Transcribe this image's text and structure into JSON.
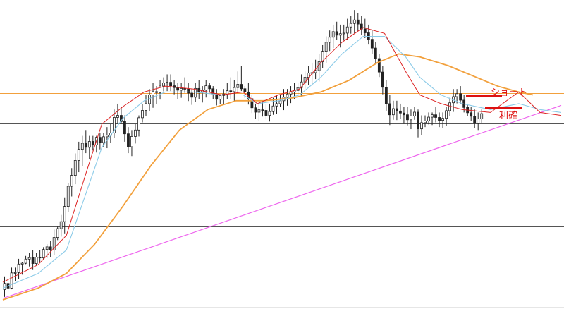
{
  "chart_data": {
    "type": "candlestick",
    "title": "",
    "xlabel": "",
    "ylabel": "",
    "grid": false,
    "y_range": [
      0,
      100
    ],
    "x_range": [
      0,
      158
    ],
    "horizontal_levels": [
      {
        "y": 81.0,
        "style": "support-resistance",
        "color": "#555555"
      },
      {
        "y": 70.5,
        "style": "current-price",
        "color": "#f2a03c"
      },
      {
        "y": 60.3,
        "style": "support-resistance",
        "color": "#555555"
      },
      {
        "y": 46.6,
        "style": "support-resistance",
        "color": "#555555"
      },
      {
        "y": 25.1,
        "style": "support-resistance",
        "color": "#555555"
      },
      {
        "y": 21.1,
        "style": "support-resistance",
        "color": "#555555"
      },
      {
        "y": 11.4,
        "style": "support-resistance",
        "color": "#555555"
      }
    ],
    "trendline": {
      "color": "#ee66ee",
      "from": [
        0,
        0.5
      ],
      "to": [
        158,
        66.4
      ]
    },
    "ma_short": {
      "color": "#dd2222",
      "points": [
        [
          0,
          6
        ],
        [
          10,
          12
        ],
        [
          18,
          22
        ],
        [
          24,
          45
        ],
        [
          28,
          60
        ],
        [
          34,
          66
        ],
        [
          40,
          71
        ],
        [
          46,
          73
        ],
        [
          54,
          72
        ],
        [
          62,
          70
        ],
        [
          68,
          71
        ],
        [
          72,
          67
        ],
        [
          78,
          70
        ],
        [
          84,
          72
        ],
        [
          90,
          81
        ],
        [
          96,
          88
        ],
        [
          102,
          93
        ],
        [
          108,
          91
        ],
        [
          114,
          78
        ],
        [
          118,
          70
        ],
        [
          124,
          67
        ],
        [
          130,
          65
        ],
        [
          138,
          64
        ],
        [
          146,
          71
        ],
        [
          152,
          64
        ],
        [
          158,
          63
        ]
      ]
    },
    "ma_mid": {
      "color": "#8ccbe8",
      "points": [
        [
          0,
          4
        ],
        [
          10,
          9
        ],
        [
          18,
          17
        ],
        [
          24,
          38
        ],
        [
          28,
          52
        ],
        [
          34,
          62
        ],
        [
          40,
          68
        ],
        [
          46,
          71
        ],
        [
          54,
          71
        ],
        [
          62,
          70
        ],
        [
          68,
          70
        ],
        [
          72,
          67
        ],
        [
          78,
          68
        ],
        [
          84,
          70
        ],
        [
          90,
          76
        ],
        [
          96,
          84
        ],
        [
          102,
          90
        ],
        [
          108,
          90
        ],
        [
          114,
          83
        ],
        [
          118,
          76
        ],
        [
          124,
          70
        ],
        [
          130,
          67
        ],
        [
          138,
          65
        ],
        [
          146,
          67
        ],
        [
          152,
          65
        ],
        [
          158,
          64
        ]
      ]
    },
    "ma_long": {
      "color": "#f2a03c",
      "points": [
        [
          0,
          0
        ],
        [
          10,
          4
        ],
        [
          18,
          9
        ],
        [
          26,
          19
        ],
        [
          34,
          32
        ],
        [
          42,
          46
        ],
        [
          50,
          58
        ],
        [
          58,
          65
        ],
        [
          66,
          68
        ],
        [
          74,
          68
        ],
        [
          82,
          69
        ],
        [
          90,
          71
        ],
        [
          98,
          75
        ],
        [
          106,
          81
        ],
        [
          112,
          84
        ],
        [
          118,
          83
        ],
        [
          126,
          80
        ],
        [
          134,
          76
        ],
        [
          140,
          73
        ],
        [
          146,
          71
        ],
        [
          150,
          70
        ]
      ]
    },
    "candles": [
      {
        "o": 3.5,
        "h": 8,
        "l": 1.0,
        "c": 5.6
      },
      {
        "o": 5.6,
        "h": 7,
        "l": 2.7,
        "c": 4.0
      },
      {
        "o": 4.0,
        "h": 11,
        "l": 3.6,
        "c": 9.2
      },
      {
        "o": 9.2,
        "h": 11,
        "l": 6.5,
        "c": 9.3
      },
      {
        "o": 9.3,
        "h": 14,
        "l": 7.0,
        "c": 12.2
      },
      {
        "o": 12.2,
        "h": 13,
        "l": 8.6,
        "c": 12.5
      },
      {
        "o": 12.5,
        "h": 15,
        "l": 12.2,
        "c": 13.9
      },
      {
        "o": 13.9,
        "h": 16,
        "l": 11.4,
        "c": 14.4
      },
      {
        "o": 14.4,
        "h": 17,
        "l": 10.2,
        "c": 12.4
      },
      {
        "o": 12.4,
        "h": 16,
        "l": 11.8,
        "c": 14.6
      },
      {
        "o": 14.6,
        "h": 17,
        "l": 12.6,
        "c": 14.3
      },
      {
        "o": 14.3,
        "h": 18,
        "l": 13.7,
        "c": 17.2
      },
      {
        "o": 17.2,
        "h": 19,
        "l": 14.3,
        "c": 18.1
      },
      {
        "o": 18.1,
        "h": 20,
        "l": 14.6,
        "c": 17.0
      },
      {
        "o": 17.0,
        "h": 24,
        "l": 15.2,
        "c": 21.3
      },
      {
        "o": 21.3,
        "h": 25,
        "l": 20.4,
        "c": 24.3
      },
      {
        "o": 24.3,
        "h": 29,
        "l": 21.6,
        "c": 26.7
      },
      {
        "o": 26.7,
        "h": 35,
        "l": 22.7,
        "c": 31.9
      },
      {
        "o": 31.9,
        "h": 40,
        "l": 29.9,
        "c": 38.8
      },
      {
        "o": 38.8,
        "h": 45,
        "l": 35.3,
        "c": 42.5
      },
      {
        "o": 42.5,
        "h": 50,
        "l": 39.5,
        "c": 47.6
      },
      {
        "o": 47.6,
        "h": 54,
        "l": 43.6,
        "c": 51.4
      },
      {
        "o": 51.4,
        "h": 56,
        "l": 45.7,
        "c": 53.5
      },
      {
        "o": 53.5,
        "h": 58,
        "l": 50.1,
        "c": 52.1
      },
      {
        "o": 52.1,
        "h": 56,
        "l": 48.1,
        "c": 54.1
      },
      {
        "o": 54.1,
        "h": 56,
        "l": 51.0,
        "c": 52.9
      },
      {
        "o": 52.9,
        "h": 56,
        "l": 50.3,
        "c": 55.5
      },
      {
        "o": 55.5,
        "h": 57,
        "l": 51.4,
        "c": 53.7
      },
      {
        "o": 53.7,
        "h": 57,
        "l": 52.1,
        "c": 55.7
      },
      {
        "o": 55.7,
        "h": 59,
        "l": 51.8,
        "c": 56.2
      },
      {
        "o": 56.2,
        "h": 60,
        "l": 53.7,
        "c": 57.0
      },
      {
        "o": 57.0,
        "h": 65,
        "l": 55.3,
        "c": 62.3
      },
      {
        "o": 62.3,
        "h": 67,
        "l": 60.1,
        "c": 63.0
      },
      {
        "o": 63.0,
        "h": 66,
        "l": 60.1,
        "c": 60.9
      },
      {
        "o": 60.9,
        "h": 63,
        "l": 54.0,
        "c": 56.7
      },
      {
        "o": 56.7,
        "h": 59,
        "l": 50.1,
        "c": 52.3
      },
      {
        "o": 52.3,
        "h": 58,
        "l": 49.1,
        "c": 55.8
      },
      {
        "o": 55.8,
        "h": 60,
        "l": 53.4,
        "c": 58.0
      },
      {
        "o": 58.0,
        "h": 63,
        "l": 55.8,
        "c": 62.2
      },
      {
        "o": 62.2,
        "h": 67,
        "l": 60.6,
        "c": 64.7
      },
      {
        "o": 64.7,
        "h": 70,
        "l": 62.9,
        "c": 67.0
      },
      {
        "o": 67.0,
        "h": 72,
        "l": 64.4,
        "c": 70.0
      },
      {
        "o": 70.0,
        "h": 74,
        "l": 65.6,
        "c": 71.1
      },
      {
        "o": 71.1,
        "h": 73,
        "l": 66.8,
        "c": 70.8
      },
      {
        "o": 70.8,
        "h": 75,
        "l": 68.4,
        "c": 73.0
      },
      {
        "o": 73.0,
        "h": 76,
        "l": 71.2,
        "c": 74.1
      },
      {
        "o": 74.1,
        "h": 77,
        "l": 71.3,
        "c": 74.3
      },
      {
        "o": 74.3,
        "h": 77,
        "l": 71.3,
        "c": 73.1
      },
      {
        "o": 73.1,
        "h": 75,
        "l": 70.2,
        "c": 72.5
      },
      {
        "o": 72.5,
        "h": 74,
        "l": 68.6,
        "c": 71.6
      },
      {
        "o": 71.6,
        "h": 74,
        "l": 69.0,
        "c": 72.2
      },
      {
        "o": 72.2,
        "h": 76,
        "l": 70.7,
        "c": 72.0
      },
      {
        "o": 72.0,
        "h": 74,
        "l": 67.9,
        "c": 70.6
      },
      {
        "o": 70.6,
        "h": 72,
        "l": 66.6,
        "c": 69.2
      },
      {
        "o": 69.2,
        "h": 74,
        "l": 67.7,
        "c": 72.2
      },
      {
        "o": 72.2,
        "h": 75,
        "l": 68.5,
        "c": 71.0
      },
      {
        "o": 71.0,
        "h": 73,
        "l": 67.4,
        "c": 71.6
      },
      {
        "o": 71.6,
        "h": 75,
        "l": 69.1,
        "c": 73.1
      },
      {
        "o": 73.1,
        "h": 74,
        "l": 70.9,
        "c": 72.1
      },
      {
        "o": 72.1,
        "h": 73,
        "l": 68.6,
        "c": 70.3
      },
      {
        "o": 70.3,
        "h": 72,
        "l": 66.4,
        "c": 68.5
      },
      {
        "o": 68.5,
        "h": 70,
        "l": 66.9,
        "c": 69.8
      },
      {
        "o": 69.8,
        "h": 72,
        "l": 66.6,
        "c": 70.3
      },
      {
        "o": 70.3,
        "h": 74,
        "l": 68.5,
        "c": 71.4
      },
      {
        "o": 71.4,
        "h": 76,
        "l": 68.7,
        "c": 71.1
      },
      {
        "o": 71.1,
        "h": 75,
        "l": 68.0,
        "c": 72.5
      },
      {
        "o": 72.5,
        "h": 78,
        "l": 71.0,
        "c": 73.6
      },
      {
        "o": 73.6,
        "h": 80,
        "l": 71.3,
        "c": 72.1
      },
      {
        "o": 72.1,
        "h": 73,
        "l": 69.0,
        "c": 71.0
      },
      {
        "o": 71.0,
        "h": 74,
        "l": 66.7,
        "c": 68.7
      },
      {
        "o": 68.7,
        "h": 70,
        "l": 63.8,
        "c": 65.6
      },
      {
        "o": 65.6,
        "h": 67,
        "l": 61.7,
        "c": 64.1
      },
      {
        "o": 64.1,
        "h": 67,
        "l": 61.2,
        "c": 64.9
      },
      {
        "o": 64.9,
        "h": 68,
        "l": 62.6,
        "c": 64.7
      },
      {
        "o": 64.7,
        "h": 67,
        "l": 61.6,
        "c": 63.0
      },
      {
        "o": 63.0,
        "h": 67,
        "l": 60.9,
        "c": 64.3
      },
      {
        "o": 64.3,
        "h": 69,
        "l": 63.2,
        "c": 66.2
      },
      {
        "o": 66.2,
        "h": 70,
        "l": 63.6,
        "c": 67.0
      },
      {
        "o": 67.0,
        "h": 70,
        "l": 65.9,
        "c": 68.0
      },
      {
        "o": 68.0,
        "h": 72,
        "l": 64.8,
        "c": 69.2
      },
      {
        "o": 69.2,
        "h": 72,
        "l": 66.3,
        "c": 70.3
      },
      {
        "o": 70.3,
        "h": 73,
        "l": 67.2,
        "c": 71.0
      },
      {
        "o": 71.0,
        "h": 74,
        "l": 68.6,
        "c": 71.5
      },
      {
        "o": 71.5,
        "h": 74,
        "l": 69.6,
        "c": 72.5
      },
      {
        "o": 72.5,
        "h": 77,
        "l": 69.2,
        "c": 74.4
      },
      {
        "o": 74.4,
        "h": 78,
        "l": 72.1,
        "c": 76.0
      },
      {
        "o": 76.0,
        "h": 80,
        "l": 73.4,
        "c": 77.5
      },
      {
        "o": 77.5,
        "h": 81,
        "l": 73.7,
        "c": 77.6
      },
      {
        "o": 77.6,
        "h": 82,
        "l": 75.4,
        "c": 78.3
      },
      {
        "o": 78.3,
        "h": 84,
        "l": 74.6,
        "c": 81.3
      },
      {
        "o": 81.3,
        "h": 87,
        "l": 79.2,
        "c": 84.9
      },
      {
        "o": 84.9,
        "h": 90,
        "l": 81.0,
        "c": 88.0
      },
      {
        "o": 88.0,
        "h": 92,
        "l": 85.0,
        "c": 89.7
      },
      {
        "o": 89.7,
        "h": 94,
        "l": 86.0,
        "c": 91.6
      },
      {
        "o": 91.6,
        "h": 95,
        "l": 88.9,
        "c": 90.4
      },
      {
        "o": 90.4,
        "h": 94,
        "l": 86.2,
        "c": 90.9
      },
      {
        "o": 90.9,
        "h": 94,
        "l": 88.6,
        "c": 91.1
      },
      {
        "o": 91.1,
        "h": 96,
        "l": 88.8,
        "c": 93.2
      },
      {
        "o": 93.2,
        "h": 97,
        "l": 90.9,
        "c": 94.4
      },
      {
        "o": 94.4,
        "h": 99,
        "l": 91.0,
        "c": 95.6
      },
      {
        "o": 95.6,
        "h": 98,
        "l": 91.8,
        "c": 94.2
      },
      {
        "o": 94.2,
        "h": 97,
        "l": 90.4,
        "c": 92.5
      },
      {
        "o": 92.5,
        "h": 96,
        "l": 89.4,
        "c": 91.2
      },
      {
        "o": 91.2,
        "h": 94,
        "l": 87.2,
        "c": 89.0
      },
      {
        "o": 89.0,
        "h": 92,
        "l": 84.0,
        "c": 86.0
      },
      {
        "o": 86.0,
        "h": 88,
        "l": 80.8,
        "c": 82.4
      },
      {
        "o": 82.4,
        "h": 84,
        "l": 76.1,
        "c": 77.8
      },
      {
        "o": 77.8,
        "h": 80,
        "l": 70.2,
        "c": 72.6
      },
      {
        "o": 72.6,
        "h": 75,
        "l": 64.6,
        "c": 67.0
      },
      {
        "o": 67.0,
        "h": 70,
        "l": 59.7,
        "c": 63.2
      },
      {
        "o": 63.2,
        "h": 68,
        "l": 61.5,
        "c": 65.3
      },
      {
        "o": 65.3,
        "h": 68,
        "l": 61.4,
        "c": 64.5
      },
      {
        "o": 64.5,
        "h": 67,
        "l": 61.9,
        "c": 63.8
      },
      {
        "o": 63.8,
        "h": 66,
        "l": 60.1,
        "c": 63.2
      },
      {
        "o": 63.2,
        "h": 66,
        "l": 59.6,
        "c": 61.5
      },
      {
        "o": 61.5,
        "h": 65,
        "l": 58.3,
        "c": 62.8
      },
      {
        "o": 62.8,
        "h": 66,
        "l": 61.5,
        "c": 64.1
      },
      {
        "o": 64.1,
        "h": 65,
        "l": 55.5,
        "c": 58.4
      },
      {
        "o": 58.4,
        "h": 63,
        "l": 56.3,
        "c": 60.5
      },
      {
        "o": 60.5,
        "h": 63,
        "l": 59.0,
        "c": 61.1
      },
      {
        "o": 61.1,
        "h": 64,
        "l": 59.9,
        "c": 62.4
      },
      {
        "o": 62.4,
        "h": 64,
        "l": 59.7,
        "c": 63.2
      },
      {
        "o": 63.2,
        "h": 66,
        "l": 60.6,
        "c": 62.3
      },
      {
        "o": 62.3,
        "h": 64,
        "l": 59.0,
        "c": 61.3
      },
      {
        "o": 61.3,
        "h": 64,
        "l": 58.7,
        "c": 62.0
      },
      {
        "o": 62.0,
        "h": 66,
        "l": 59.5,
        "c": 64.6
      },
      {
        "o": 64.6,
        "h": 69,
        "l": 62.7,
        "c": 67.3
      },
      {
        "o": 67.3,
        "h": 72,
        "l": 64.2,
        "c": 69.4
      },
      {
        "o": 69.4,
        "h": 72,
        "l": 67.1,
        "c": 70.4
      },
      {
        "o": 70.4,
        "h": 73,
        "l": 67.0,
        "c": 68.2
      },
      {
        "o": 68.2,
        "h": 70,
        "l": 64.0,
        "c": 65.7
      },
      {
        "o": 65.7,
        "h": 67,
        "l": 62.8,
        "c": 63.9
      },
      {
        "o": 63.9,
        "h": 66,
        "l": 61.2,
        "c": 62.7
      },
      {
        "o": 62.7,
        "h": 65,
        "l": 58.6,
        "c": 60.3
      },
      {
        "o": 60.3,
        "h": 64,
        "l": 58.0,
        "c": 61.8
      },
      {
        "o": 61.8,
        "h": 65,
        "l": 60.5,
        "c": 63.6
      }
    ],
    "annotations": [
      {
        "text": "ショート",
        "color": "#dd1111"
      },
      {
        "text": "利確",
        "color": "#dd1111"
      }
    ],
    "x_tick_labels": [
      "",
      "",
      "",
      "",
      "",
      "",
      "",
      "",
      "",
      "",
      "",
      "",
      "",
      ""
    ]
  }
}
